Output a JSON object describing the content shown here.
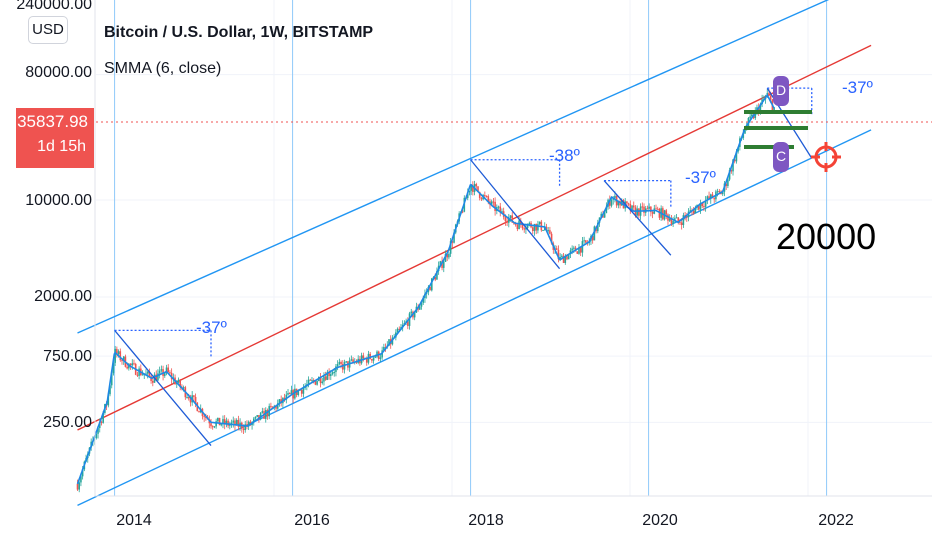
{
  "header": {
    "title": "Bitcoin / U.S. Dollar, 1W, BITSTAMP",
    "indicator": "SMMA (6, close)",
    "currency_button": "USD"
  },
  "price_tag": {
    "price": "35837.98",
    "countdown": "1d 15h"
  },
  "annotations": {
    "drop_2014": "-37º",
    "drop_2018": "-38º",
    "drop_2019": "-37º",
    "drop_2021": "-37º",
    "target": "20000",
    "marker_top": "D",
    "marker_bottom": "C"
  },
  "colors": {
    "channel": "#2196f3",
    "midline": "#e53935",
    "smma": "#1e88e5",
    "up_candle": "#26a69a",
    "down_candle": "#ef5350",
    "support_lines": "#2e7d32",
    "price_tag": "#ef5350",
    "marker": "#7e57c2",
    "target_icon": "#f44336"
  },
  "chart_data": {
    "type": "candlestick",
    "scale": "log",
    "y_tick_labels": [
      "240000.00",
      "80000.00",
      "10000.00",
      "2000.00",
      "750.00",
      "250.00"
    ],
    "x_tick_labels": [
      "2014",
      "2016",
      "2018",
      "2020",
      "2022"
    ],
    "current_price": 35837.98,
    "smma_points": [
      {
        "date": "2013-07",
        "value": 90
      },
      {
        "date": "2013-11",
        "value": 350
      },
      {
        "date": "2013-12",
        "value": 800
      },
      {
        "date": "2014-02",
        "value": 640
      },
      {
        "date": "2014-05",
        "value": 520
      },
      {
        "date": "2014-07",
        "value": 580
      },
      {
        "date": "2014-10",
        "value": 390
      },
      {
        "date": "2015-01",
        "value": 250
      },
      {
        "date": "2015-06",
        "value": 235
      },
      {
        "date": "2015-12",
        "value": 400
      },
      {
        "date": "2016-06",
        "value": 620
      },
      {
        "date": "2016-12",
        "value": 780
      },
      {
        "date": "2017-05",
        "value": 1700
      },
      {
        "date": "2017-09",
        "value": 4300
      },
      {
        "date": "2017-12",
        "value": 13000
      },
      {
        "date": "2018-03",
        "value": 9000
      },
      {
        "date": "2018-06",
        "value": 6800
      },
      {
        "date": "2018-10",
        "value": 6400
      },
      {
        "date": "2018-12",
        "value": 3700
      },
      {
        "date": "2019-04",
        "value": 5000
      },
      {
        "date": "2019-07",
        "value": 10500
      },
      {
        "date": "2019-10",
        "value": 8300
      },
      {
        "date": "2020-01",
        "value": 8400
      },
      {
        "date": "2020-04",
        "value": 6900
      },
      {
        "date": "2020-07",
        "value": 9400
      },
      {
        "date": "2020-10",
        "value": 11500
      },
      {
        "date": "2021-01",
        "value": 33000
      },
      {
        "date": "2021-04",
        "value": 57000
      },
      {
        "date": "2021-05",
        "value": 45000
      }
    ],
    "channel_lines": [
      {
        "name": "upper",
        "from": {
          "date": "2013-07",
          "value": 1100
        },
        "to": {
          "date": "2022-01",
          "value": 290000
        }
      },
      {
        "name": "middle",
        "from": {
          "date": "2013-07",
          "value": 220
        },
        "to": {
          "date": "2022-06",
          "value": 130000
        }
      },
      {
        "name": "lower",
        "from": {
          "date": "2013-07",
          "value": 63
        },
        "to": {
          "date": "2022-06",
          "value": 32000
        }
      }
    ],
    "drawdowns": [
      {
        "label": "-37º",
        "peak_date": "2013-12",
        "peak_value": 1150,
        "low_date": "2015-01",
        "low_value": 170
      },
      {
        "label": "-38º",
        "peak_date": "2017-12",
        "peak_value": 19500,
        "low_date": "2018-12",
        "low_value": 3200
      },
      {
        "label": "-37º",
        "peak_date": "2019-06",
        "peak_value": 13800,
        "low_date": "2020-03",
        "low_value": 4000
      },
      {
        "label": "-37º",
        "peak_date": "2021-04",
        "peak_value": 64000,
        "low_date": "2021-10",
        "low_value": 20000
      }
    ]
  }
}
